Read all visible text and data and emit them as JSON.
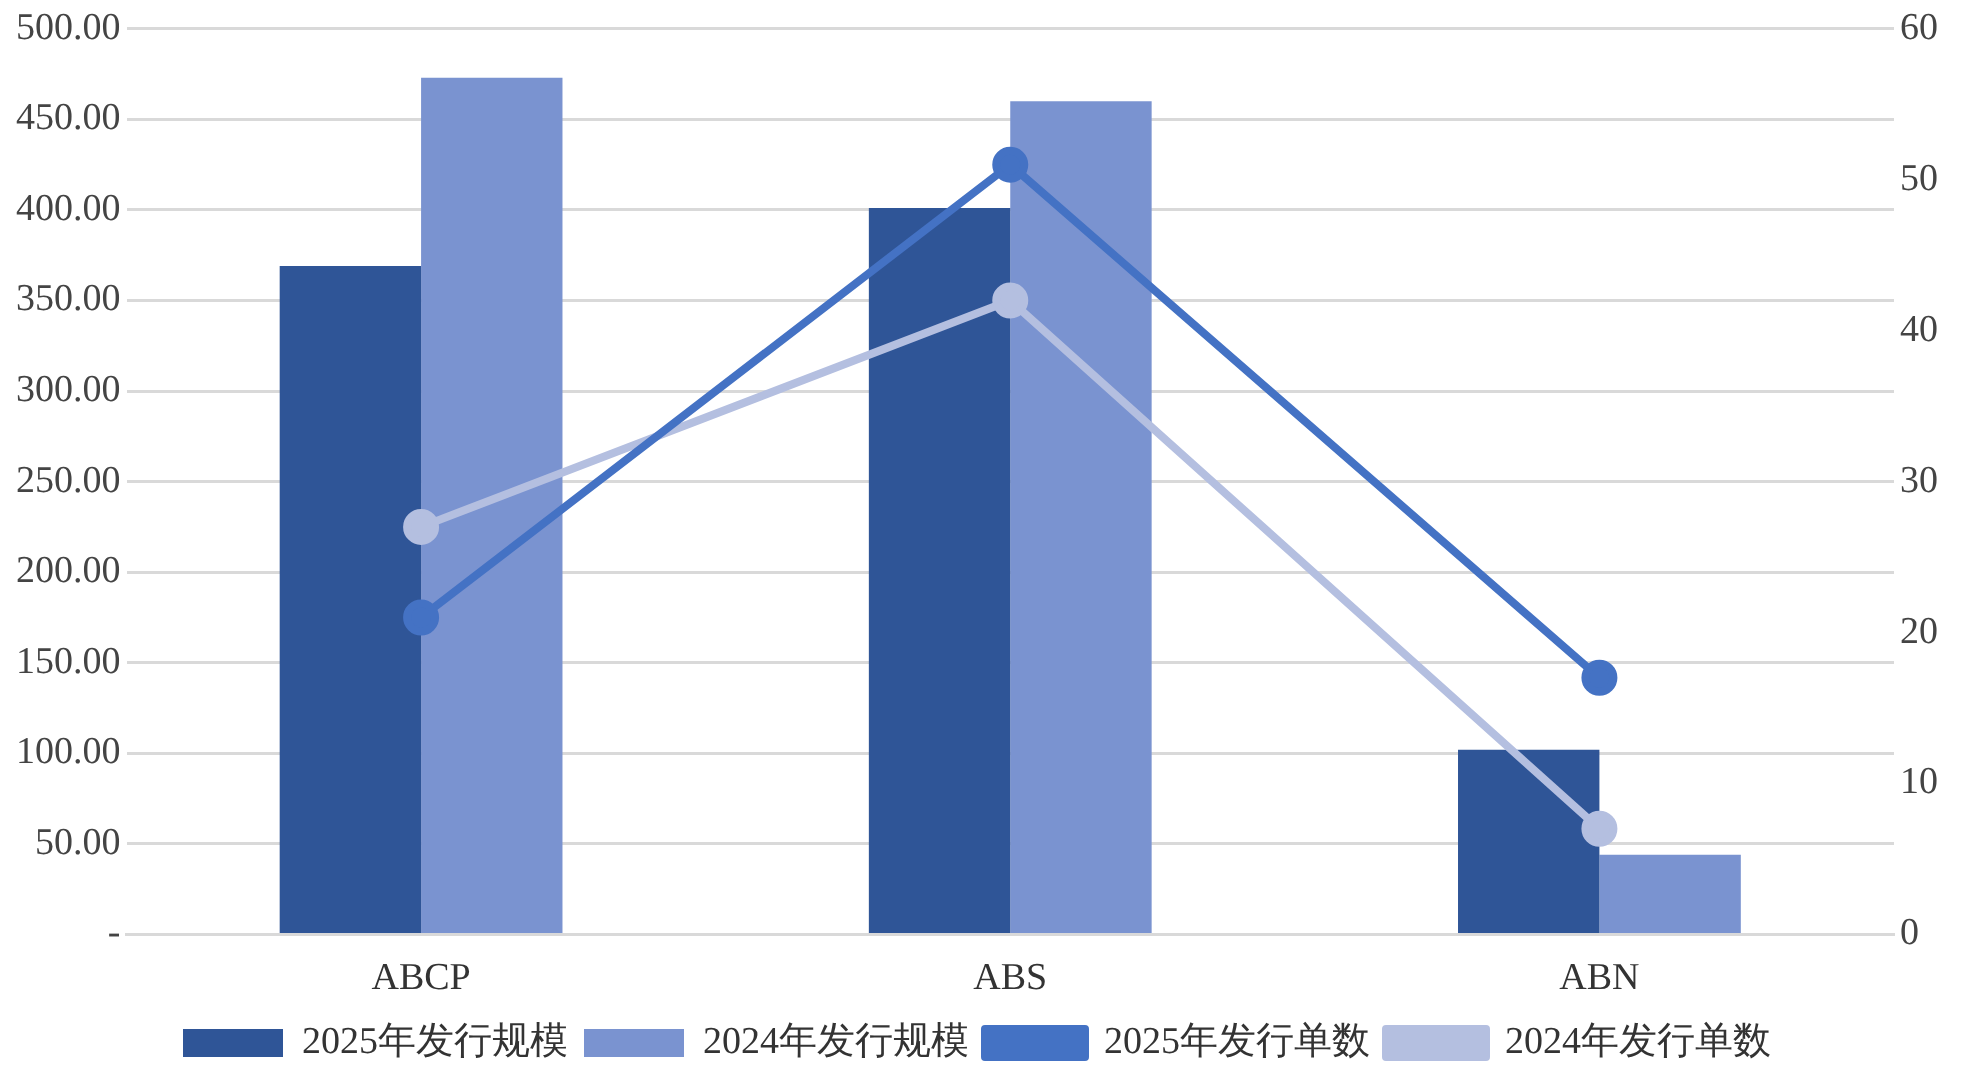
{
  "chart_data": {
    "type": "bar",
    "categories": [
      "ABCP",
      "ABS",
      "ABN"
    ],
    "series": [
      {
        "name": "2025年发行规模",
        "color": "#2f5597",
        "values": [
          369,
          401,
          102
        ]
      },
      {
        "name": "2024年发行规模",
        "color": "#7a93d0",
        "values": [
          473,
          460,
          44
        ]
      },
      {
        "name": "2025年发行单数",
        "type": "line",
        "axis": "y2",
        "color": "#4472c4",
        "values": [
          21,
          51,
          17
        ]
      },
      {
        "name": "2024年发行单数",
        "type": "line",
        "axis": "y2",
        "color": "#b4bfe0",
        "values": [
          27,
          42,
          7
        ]
      }
    ],
    "ylim": [
      0,
      500
    ],
    "yticks": [
      {
        "value": 0,
        "label": "-"
      },
      {
        "value": 50,
        "label": "50.00"
      },
      {
        "value": 100,
        "label": "100.00"
      },
      {
        "value": 150,
        "label": "150.00"
      },
      {
        "value": 200,
        "label": "200.00"
      },
      {
        "value": 250,
        "label": "250.00"
      },
      {
        "value": 300,
        "label": "300.00"
      },
      {
        "value": 350,
        "label": "350.00"
      },
      {
        "value": 400,
        "label": "400.00"
      },
      {
        "value": 450,
        "label": "450.00"
      },
      {
        "value": 500,
        "label": "500.00"
      }
    ],
    "y2lim": [
      0,
      60
    ],
    "y2ticks": [
      0,
      10,
      20,
      30,
      40,
      50,
      60
    ],
    "grid": "y",
    "legend": "bottom",
    "marker": "circle",
    "line_style": "solid"
  }
}
